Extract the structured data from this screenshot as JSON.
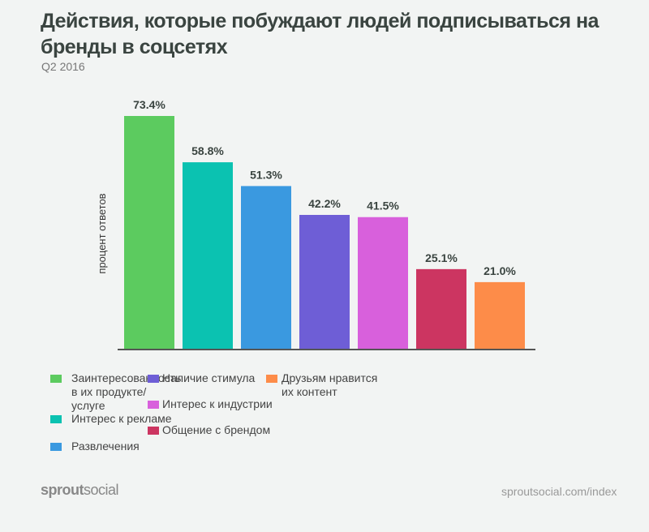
{
  "title": "Действия, которые побуждают людей подписываться на бренды в соцсетях",
  "subtitle": "Q2 2016",
  "footer": {
    "brand_bold": "sprout",
    "brand_light": "social",
    "url": "sproutsocial.com/index"
  },
  "chart_data": {
    "type": "bar",
    "ylabel": "процент ответов",
    "ylim": [
      0,
      75
    ],
    "grid": false,
    "legend_position": "bottom",
    "categories": [
      "Заинтересованность в их продукте/услуге",
      "Интерес к рекламе",
      "Развлечения",
      "Наличие стимула",
      "Интерес к индустрии",
      "Общение с брендом",
      "Друзьям нравится их контент"
    ],
    "values": [
      73.4,
      58.8,
      51.3,
      42.2,
      41.5,
      25.1,
      21.0
    ],
    "data_labels": [
      "73.4%",
      "58.8%",
      "51.3%",
      "42.2%",
      "41.5%",
      "25.1%",
      "21.0%"
    ],
    "colors": [
      "#5ccb5f",
      "#0bc2b1",
      "#3a99e0",
      "#6e5ed6",
      "#d860dc",
      "#cc3561",
      "#fd8c49"
    ]
  }
}
